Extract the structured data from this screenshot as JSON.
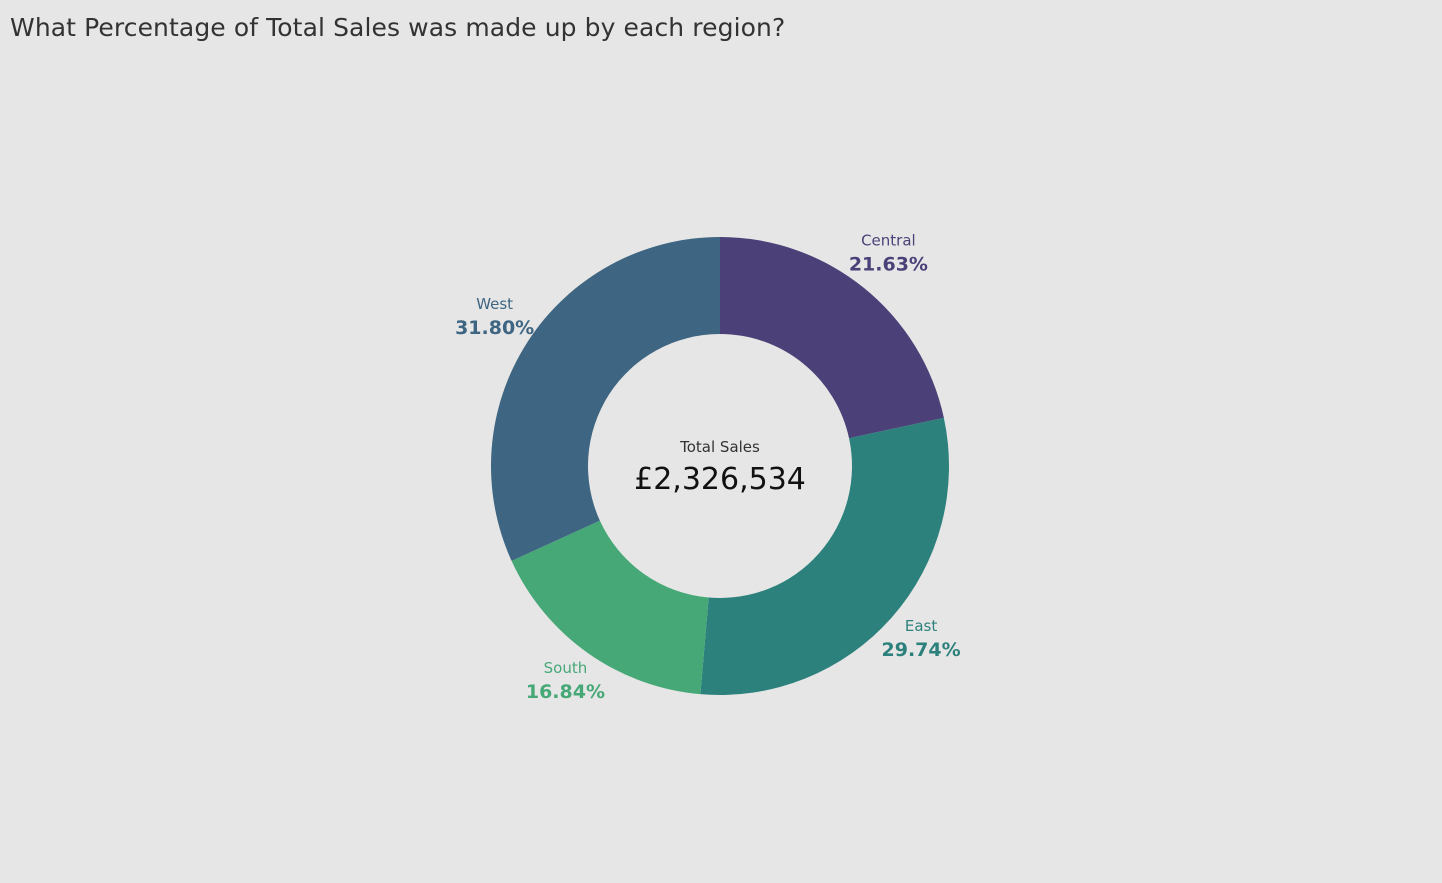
{
  "page": {
    "title": "What Percentage of Total Sales was made up by each region?"
  },
  "chart_data": {
    "type": "pie",
    "variant": "donut",
    "categories": [
      "Central",
      "East",
      "South",
      "West"
    ],
    "values": [
      21.63,
      29.74,
      16.84,
      31.8
    ],
    "value_labels": [
      "21.63%",
      "29.74%",
      "16.84%",
      "31.80%"
    ],
    "colors": [
      "#4b4178",
      "#2d817d",
      "#46a877",
      "#3e6581"
    ],
    "center_caption": "Total Sales",
    "center_value": "£2,326,534",
    "start_angle": "12 o'clock",
    "direction": "clockwise",
    "legend": "none"
  }
}
